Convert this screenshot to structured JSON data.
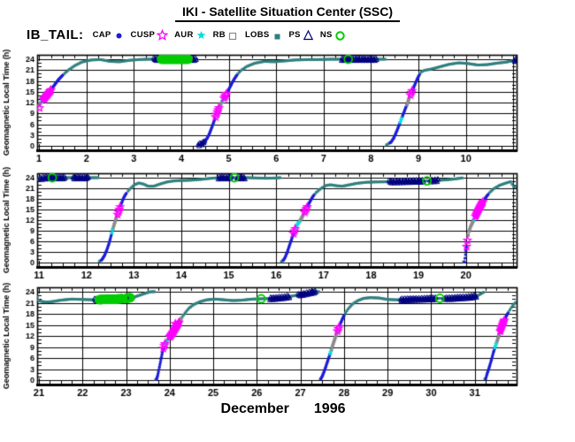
{
  "header": {
    "title": "IKI - Satellite Situation Center (SSC)"
  },
  "legend": {
    "label": "IB_TAIL:",
    "items": [
      {
        "name": "CAP",
        "marker": "dot-filled",
        "color": "#1c1cd6"
      },
      {
        "name": "CUSP",
        "marker": "star-open",
        "color": "#ff00ff"
      },
      {
        "name": "AUR",
        "marker": "star-filled",
        "color": "#00dede"
      },
      {
        "name": "RB",
        "marker": "square-open",
        "color": "#8a8a8a"
      },
      {
        "name": "LOBS",
        "marker": "square-filled",
        "color": "#2f7f7f"
      },
      {
        "name": "PS",
        "marker": "triangle-open",
        "color": "#00007f"
      },
      {
        "name": "NS",
        "marker": "circle-open",
        "color": "#00cc00"
      }
    ]
  },
  "footer": {
    "month_label": "December",
    "year_label": "1996"
  },
  "chart_data": {
    "type": "scatter",
    "title": "IKI - Satellite Situation Center (SSC)",
    "dataset": "IB_TAIL",
    "ylabel": "Geomagnetic Local Time (h)",
    "xlabel": "December 1996",
    "y_ticks": [
      0,
      3,
      6,
      9,
      12,
      15,
      18,
      21,
      24
    ],
    "y_minor_step": 1,
    "x_minor_step": 0.25,
    "grid": true,
    "panels": [
      {
        "t0": 0.96,
        "t1": 11.07,
        "tick_days": [
          1,
          2,
          3,
          4,
          5,
          6,
          7,
          8,
          9,
          10
        ]
      },
      {
        "t0": 10.96,
        "t1": 21.07,
        "tick_days": [
          11,
          12,
          13,
          14,
          15,
          16,
          17,
          18,
          19,
          20
        ]
      },
      {
        "t0": 20.96,
        "t1": 31.96,
        "tick_days": [
          21,
          22,
          23,
          24,
          25,
          26,
          27,
          28,
          29,
          30,
          31
        ]
      }
    ],
    "region_colors": {
      "CAP": "#1c1cd6",
      "CUSP": "#ff00ff",
      "AUR": "#00dede",
      "RB": "#8a8a8a",
      "LOBS": "#2f7f7f",
      "PS": "#00007f",
      "NS": "#00cc00"
    },
    "curve_keyframes": [
      [
        1.0,
        11.2
      ],
      [
        1.05,
        12.2
      ],
      [
        1.12,
        13.3
      ],
      [
        1.2,
        14.6
      ],
      [
        1.3,
        16.4
      ],
      [
        1.4,
        18.2
      ],
      [
        1.5,
        19.6
      ],
      [
        1.62,
        21.0
      ],
      [
        1.75,
        22.2
      ],
      [
        1.9,
        23.2
      ],
      [
        2.1,
        23.8
      ],
      [
        2.3,
        23.9
      ],
      [
        2.5,
        23.4
      ],
      [
        2.7,
        23.3
      ],
      [
        2.9,
        23.7
      ],
      [
        3.1,
        23.9
      ],
      [
        3.3,
        24.0
      ],
      [
        3.5,
        24.1
      ],
      [
        3.8,
        24.15
      ],
      [
        4.1,
        24.1
      ],
      [
        4.32,
        24.0
      ],
      [
        4.36,
        0.3
      ],
      [
        4.45,
        0.7
      ],
      [
        4.52,
        1.6
      ],
      [
        4.58,
        3.0
      ],
      [
        4.64,
        5.0
      ],
      [
        4.7,
        7.2
      ],
      [
        4.75,
        9.2
      ],
      [
        4.8,
        10.8
      ],
      [
        4.85,
        12.0
      ],
      [
        4.9,
        13.2
      ],
      [
        4.95,
        14.4
      ],
      [
        5.0,
        15.6
      ],
      [
        5.06,
        17.2
      ],
      [
        5.12,
        18.6
      ],
      [
        5.18,
        19.8
      ],
      [
        5.26,
        20.9
      ],
      [
        5.38,
        22.0
      ],
      [
        5.55,
        22.9
      ],
      [
        5.75,
        23.4
      ],
      [
        5.95,
        23.3
      ],
      [
        6.15,
        23.5
      ],
      [
        6.4,
        23.8
      ],
      [
        6.65,
        23.9
      ],
      [
        6.9,
        23.9
      ],
      [
        7.15,
        24.0
      ],
      [
        7.5,
        24.05
      ],
      [
        7.9,
        24.05
      ],
      [
        8.15,
        24.0
      ],
      [
        8.28,
        24.0
      ],
      [
        8.33,
        0.3
      ],
      [
        8.42,
        1.0
      ],
      [
        8.48,
        2.2
      ],
      [
        8.54,
        4.0
      ],
      [
        8.6,
        6.0
      ],
      [
        8.65,
        7.8
      ],
      [
        8.7,
        9.5
      ],
      [
        8.75,
        11.2
      ],
      [
        8.8,
        13.0
      ],
      [
        8.85,
        14.8
      ],
      [
        8.9,
        16.2
      ],
      [
        8.95,
        17.8
      ],
      [
        9.0,
        19.2
      ],
      [
        9.05,
        20.4
      ],
      [
        9.12,
        20.9
      ],
      [
        9.25,
        21.2
      ],
      [
        9.45,
        21.9
      ],
      [
        9.65,
        22.6
      ],
      [
        9.85,
        23.0
      ],
      [
        10.05,
        22.8
      ],
      [
        10.25,
        22.4
      ],
      [
        10.45,
        22.5
      ],
      [
        10.65,
        22.9
      ],
      [
        10.85,
        23.2
      ],
      [
        11.0,
        23.6
      ],
      [
        11.1,
        23.95
      ],
      [
        11.3,
        24.05
      ],
      [
        11.6,
        24.05
      ],
      [
        11.9,
        24.0
      ],
      [
        12.1,
        24.0
      ],
      [
        12.24,
        24.0
      ],
      [
        12.28,
        0.3
      ],
      [
        12.33,
        0.9
      ],
      [
        12.38,
        2.0
      ],
      [
        12.43,
        3.6
      ],
      [
        12.48,
        5.6
      ],
      [
        12.52,
        7.6
      ],
      [
        12.55,
        9.2
      ],
      [
        12.58,
        10.6
      ],
      [
        12.62,
        12.2
      ],
      [
        12.66,
        13.8
      ],
      [
        12.7,
        15.4
      ],
      [
        12.74,
        16.8
      ],
      [
        12.78,
        18.2
      ],
      [
        12.83,
        19.4
      ],
      [
        12.9,
        20.6
      ],
      [
        13.0,
        21.9
      ],
      [
        13.1,
        22.5
      ],
      [
        13.2,
        22.2
      ],
      [
        13.3,
        21.6
      ],
      [
        13.42,
        21.6
      ],
      [
        13.55,
        22.2
      ],
      [
        13.7,
        22.8
      ],
      [
        13.85,
        23.1
      ],
      [
        14.0,
        23.2
      ],
      [
        14.2,
        23.3
      ],
      [
        14.4,
        23.5
      ],
      [
        14.6,
        23.8
      ],
      [
        14.8,
        24.0
      ],
      [
        15.1,
        24.05
      ],
      [
        15.4,
        24.0
      ],
      [
        15.6,
        23.9
      ],
      [
        15.8,
        23.85
      ],
      [
        16.0,
        23.9
      ],
      [
        16.08,
        24.0
      ],
      [
        16.13,
        0.3
      ],
      [
        16.18,
        1.2
      ],
      [
        16.23,
        2.8
      ],
      [
        16.28,
        4.8
      ],
      [
        16.33,
        6.8
      ],
      [
        16.38,
        8.8
      ],
      [
        16.42,
        10.2
      ],
      [
        16.47,
        11.2
      ],
      [
        16.52,
        12.2
      ],
      [
        16.57,
        13.4
      ],
      [
        16.62,
        14.8
      ],
      [
        16.67,
        16.2
      ],
      [
        16.72,
        17.4
      ],
      [
        16.78,
        18.8
      ],
      [
        16.85,
        19.9
      ],
      [
        16.95,
        21.0
      ],
      [
        17.05,
        21.8
      ],
      [
        17.15,
        22.0
      ],
      [
        17.28,
        21.7
      ],
      [
        17.4,
        21.6
      ],
      [
        17.55,
        22.0
      ],
      [
        17.7,
        22.4
      ],
      [
        17.9,
        22.7
      ],
      [
        18.1,
        22.8
      ],
      [
        18.35,
        22.85
      ],
      [
        18.6,
        22.9
      ],
      [
        18.85,
        23.0
      ],
      [
        19.1,
        23.05
      ],
      [
        19.35,
        23.2
      ],
      [
        19.6,
        23.4
      ],
      [
        19.8,
        23.7
      ],
      [
        19.93,
        23.95
      ],
      [
        19.97,
        0.2
      ],
      [
        20.0,
        3.0
      ],
      [
        20.03,
        6.0
      ],
      [
        20.06,
        8.6
      ],
      [
        20.1,
        10.2
      ],
      [
        20.15,
        11.6
      ],
      [
        20.2,
        13.0
      ],
      [
        20.25,
        14.4
      ],
      [
        20.3,
        15.8
      ],
      [
        20.36,
        17.2
      ],
      [
        20.42,
        18.4
      ],
      [
        20.5,
        19.8
      ],
      [
        20.6,
        21.0
      ],
      [
        20.72,
        21.9
      ],
      [
        20.85,
        22.5
      ],
      [
        20.95,
        22.9
      ],
      [
        21.0,
        21.5
      ],
      [
        21.15,
        21.2
      ],
      [
        21.3,
        21.3
      ],
      [
        21.5,
        21.7
      ],
      [
        21.75,
        22.0
      ],
      [
        22.0,
        21.9
      ],
      [
        22.25,
        21.8
      ],
      [
        22.5,
        21.9
      ],
      [
        22.75,
        22.0
      ],
      [
        23.0,
        22.2
      ],
      [
        23.2,
        22.6
      ],
      [
        23.35,
        23.2
      ],
      [
        23.5,
        23.8
      ],
      [
        23.64,
        24.2
      ],
      [
        23.7,
        0.2
      ],
      [
        23.73,
        1.5
      ],
      [
        23.76,
        3.2
      ],
      [
        23.79,
        5.0
      ],
      [
        23.82,
        6.8
      ],
      [
        23.85,
        8.4
      ],
      [
        23.88,
        9.6
      ],
      [
        23.93,
        10.6
      ],
      [
        23.98,
        11.4
      ],
      [
        24.04,
        12.4
      ],
      [
        24.1,
        13.4
      ],
      [
        24.16,
        14.6
      ],
      [
        24.22,
        15.8
      ],
      [
        24.28,
        17.0
      ],
      [
        24.35,
        18.2
      ],
      [
        24.45,
        19.6
      ],
      [
        24.55,
        20.5
      ],
      [
        24.7,
        21.3
      ],
      [
        24.85,
        21.8
      ],
      [
        25.05,
        22.0
      ],
      [
        25.25,
        21.8
      ],
      [
        25.45,
        21.6
      ],
      [
        25.65,
        21.7
      ],
      [
        25.9,
        22.0
      ],
      [
        26.15,
        22.1
      ],
      [
        26.4,
        22.2
      ],
      [
        26.65,
        22.5
      ],
      [
        26.9,
        23.0
      ],
      [
        27.1,
        23.4
      ],
      [
        27.25,
        23.8
      ],
      [
        27.4,
        24.1
      ],
      [
        27.47,
        0.3
      ],
      [
        27.52,
        1.6
      ],
      [
        27.57,
        3.2
      ],
      [
        27.62,
        5.0
      ],
      [
        27.67,
        6.8
      ],
      [
        27.71,
        8.2
      ],
      [
        27.75,
        9.8
      ],
      [
        27.79,
        11.2
      ],
      [
        27.83,
        12.6
      ],
      [
        27.87,
        14.0
      ],
      [
        27.92,
        15.4
      ],
      [
        27.97,
        16.8
      ],
      [
        28.03,
        18.2
      ],
      [
        28.1,
        19.4
      ],
      [
        28.2,
        20.7
      ],
      [
        28.32,
        21.6
      ],
      [
        28.45,
        22.2
      ],
      [
        28.6,
        22.4
      ],
      [
        28.8,
        22.3
      ],
      [
        29.0,
        21.9
      ],
      [
        29.2,
        21.8
      ],
      [
        29.45,
        21.9
      ],
      [
        29.7,
        22.0
      ],
      [
        29.95,
        22.1
      ],
      [
        30.2,
        22.2
      ],
      [
        30.45,
        22.2
      ],
      [
        30.7,
        22.4
      ],
      [
        30.95,
        22.6
      ],
      [
        31.08,
        23.0
      ],
      [
        31.15,
        23.5
      ],
      [
        31.21,
        23.9
      ],
      [
        31.25,
        0.3
      ],
      [
        31.28,
        1.6
      ],
      [
        31.33,
        3.4
      ],
      [
        31.38,
        5.4
      ],
      [
        31.42,
        7.2
      ],
      [
        31.46,
        8.8
      ],
      [
        31.5,
        10.2
      ],
      [
        31.54,
        11.6
      ],
      [
        31.58,
        13.2
      ],
      [
        31.62,
        14.6
      ],
      [
        31.66,
        15.8
      ],
      [
        31.7,
        16.8
      ],
      [
        31.74,
        17.8
      ],
      [
        31.79,
        18.8
      ],
      [
        31.85,
        19.9
      ],
      [
        31.92,
        20.9
      ],
      [
        32.0,
        21.8
      ]
    ],
    "region_intervals": [
      [
        "CAP",
        1.26,
        1.5
      ],
      [
        "CAP",
        4.5,
        4.72
      ],
      [
        "CAP",
        4.97,
        5.17
      ],
      [
        "CAP",
        8.4,
        8.615
      ],
      [
        "CAP",
        8.655,
        8.755
      ],
      [
        "CAP",
        8.875,
        9.02
      ],
      [
        "CAP",
        12.31,
        12.535
      ],
      [
        "CAP",
        12.72,
        12.85
      ],
      [
        "CAP",
        16.15,
        16.365
      ],
      [
        "CAP",
        16.66,
        16.8
      ],
      [
        "CAP",
        19.97,
        20.015
      ],
      [
        "CAP",
        20.37,
        20.47
      ],
      [
        "CAP",
        23.7,
        23.855
      ],
      [
        "CAP",
        27.47,
        27.68
      ],
      [
        "CAP",
        27.9,
        28.0
      ],
      [
        "CAP",
        31.25,
        31.46
      ],
      [
        "CAP",
        31.68,
        31.76
      ],
      [
        "RB",
        1.0,
        1.055
      ],
      [
        "RB",
        4.8,
        4.87
      ],
      [
        "RB",
        8.755,
        8.83
      ],
      [
        "RB",
        12.555,
        12.655
      ],
      [
        "RB",
        16.5,
        16.6
      ],
      [
        "RB",
        20.05,
        20.17
      ],
      [
        "RB",
        23.94,
        24.0
      ],
      [
        "RB",
        24.22,
        24.27
      ],
      [
        "RB",
        27.71,
        27.85
      ],
      [
        "RB",
        31.5,
        31.58
      ],
      [
        "AUR",
        1.055,
        1.09
      ],
      [
        "AUR",
        4.87,
        4.9
      ],
      [
        "AUR",
        8.615,
        8.655
      ],
      [
        "AUR",
        12.535,
        12.555
      ],
      [
        "AUR",
        16.41,
        16.5
      ],
      [
        "AUR",
        20.17,
        20.2
      ],
      [
        "AUR",
        23.9,
        23.94
      ],
      [
        "AUR",
        27.68,
        27.705
      ],
      [
        "AUR",
        31.46,
        31.5
      ],
      [
        "CUSP",
        1.09,
        1.26
      ],
      [
        "CUSP",
        4.72,
        4.8
      ],
      [
        "CUSP",
        4.9,
        4.97
      ],
      [
        "CUSP",
        8.83,
        8.875
      ],
      [
        "CUSP",
        12.655,
        12.72
      ],
      [
        "CUSP",
        16.365,
        16.41
      ],
      [
        "CUSP",
        16.6,
        16.66
      ],
      [
        "CUSP",
        20.015,
        20.05
      ],
      [
        "CUSP",
        20.2,
        20.37
      ],
      [
        "CUSP",
        23.855,
        23.9
      ],
      [
        "CUSP",
        24.0,
        24.22
      ],
      [
        "CUSP",
        27.85,
        27.9
      ],
      [
        "CUSP",
        31.58,
        31.68
      ]
    ],
    "ps_bands": [
      [
        3.42,
        3.58
      ],
      [
        4.15,
        4.32
      ],
      [
        4.36,
        4.5
      ],
      [
        7.38,
        8.12
      ],
      [
        11.02,
        11.55
      ],
      [
        11.72,
        12.05
      ],
      [
        14.78,
        15.06
      ],
      [
        15.18,
        15.35
      ],
      [
        18.38,
        19.1
      ],
      [
        19.25,
        19.42
      ],
      [
        22.28,
        23.15
      ],
      [
        26.3,
        26.75
      ],
      [
        26.95,
        27.35
      ],
      [
        29.3,
        30.1
      ],
      [
        30.3,
        31.05
      ]
    ],
    "ns_blobs": [
      [
        3.58,
        4.15
      ],
      [
        22.38,
        22.92
      ],
      [
        23.0,
        23.1
      ]
    ],
    "ns_circles": [
      7.52,
      11.28,
      15.12,
      19.18,
      26.1,
      30.2
    ],
    "cusp_points": [
      [
        1.01,
        10.5
      ],
      [
        24.13,
        15.3
      ]
    ]
  }
}
